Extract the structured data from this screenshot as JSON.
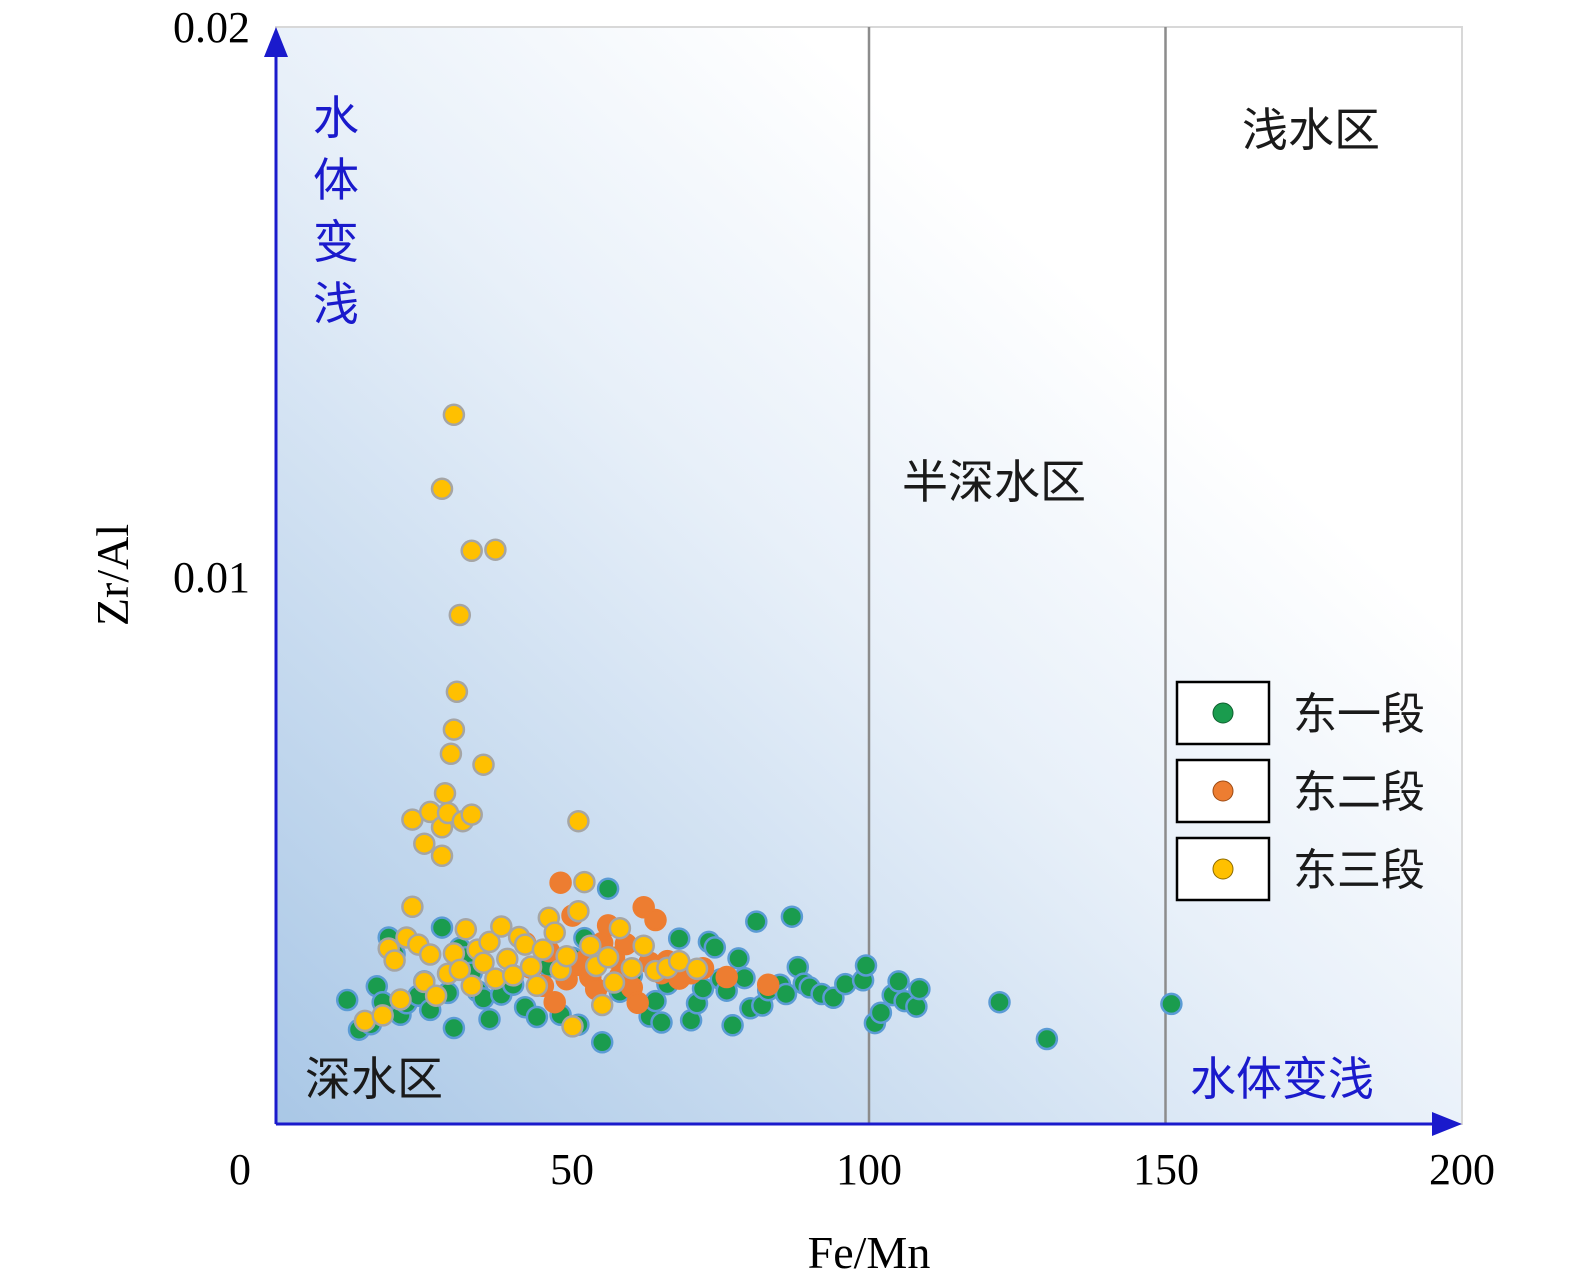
{
  "chart_data": {
    "type": "scatter",
    "xlabel": "Fe/Mn",
    "ylabel": "Zr/Al",
    "xlim": [
      0,
      200
    ],
    "ylim": [
      0,
      0.02
    ],
    "x_ticks": [
      "0",
      "50",
      "100",
      "150",
      "200"
    ],
    "y_ticks": [
      "0.01",
      "0.02"
    ],
    "zone_boundaries_x": [
      100,
      150
    ],
    "zone_labels": {
      "deep": "深水区",
      "semi_deep": "半深水区",
      "shallow": "浅水区"
    },
    "arrow_labels": {
      "x": "水体变浅",
      "y": [
        "水",
        "体",
        "变",
        "浅"
      ]
    },
    "legend_position": "right",
    "colors": {
      "background_gradient_start": "#a9c7e6",
      "background_gradient_end": "#ffffff",
      "axis": "#1a1acc",
      "zone_line": "#8c8c8c"
    },
    "series": [
      {
        "name": "东一段",
        "color": "#1a9c4e",
        "stroke": "#5b9bd5",
        "points": [
          [
            12,
            0.00226
          ],
          [
            14,
            0.00172
          ],
          [
            16,
            0.00182
          ],
          [
            17,
            0.00251
          ],
          [
            18,
            0.00222
          ],
          [
            19,
            0.0034
          ],
          [
            20,
            0.0031
          ],
          [
            21,
            0.00199
          ],
          [
            22,
            0.0022
          ],
          [
            24,
            0.00234
          ],
          [
            25,
            0.0026
          ],
          [
            26,
            0.00208
          ],
          [
            28,
            0.00358
          ],
          [
            29,
            0.00239
          ],
          [
            30,
            0.00175
          ],
          [
            31,
            0.00321
          ],
          [
            32,
            0.00304
          ],
          [
            33,
            0.00276
          ],
          [
            34,
            0.00242
          ],
          [
            35,
            0.00229
          ],
          [
            36,
            0.00191
          ],
          [
            38,
            0.00236
          ],
          [
            40,
            0.00254
          ],
          [
            42,
            0.00213
          ],
          [
            44,
            0.00195
          ],
          [
            46,
            0.00287
          ],
          [
            48,
            0.00199
          ],
          [
            50,
            0.00303
          ],
          [
            51,
            0.00181
          ],
          [
            52,
            0.00339
          ],
          [
            55,
            0.00149
          ],
          [
            56,
            0.00429
          ],
          [
            58,
            0.00241
          ],
          [
            60,
            0.00271
          ],
          [
            63,
            0.00196
          ],
          [
            64,
            0.00224
          ],
          [
            65,
            0.00185
          ],
          [
            66,
            0.00255
          ],
          [
            67,
            0.00289
          ],
          [
            68,
            0.00338
          ],
          [
            69,
            0.00274
          ],
          [
            70,
            0.00189
          ],
          [
            71,
            0.0022
          ],
          [
            72,
            0.00247
          ],
          [
            73,
            0.00332
          ],
          [
            74,
            0.00322
          ],
          [
            75,
            0.00264
          ],
          [
            76,
            0.00243
          ],
          [
            77,
            0.0018
          ],
          [
            78,
            0.00302
          ],
          [
            79,
            0.00266
          ],
          [
            80,
            0.00211
          ],
          [
            81,
            0.00369
          ],
          [
            82,
            0.00216
          ],
          [
            83,
            0.00244
          ],
          [
            85,
            0.00254
          ],
          [
            86,
            0.00237
          ],
          [
            87,
            0.00378
          ],
          [
            88,
            0.00286
          ],
          [
            89,
            0.00256
          ],
          [
            90,
            0.00249
          ],
          [
            92,
            0.00237
          ],
          [
            94,
            0.0023
          ],
          [
            96,
            0.00255
          ],
          [
            99,
            0.00262
          ],
          [
            99.5,
            0.00289
          ],
          [
            101,
            0.00184
          ],
          [
            102,
            0.00203
          ],
          [
            104,
            0.00235
          ],
          [
            105,
            0.0026
          ],
          [
            106,
            0.00224
          ],
          [
            108,
            0.00214
          ],
          [
            108.5,
            0.00246
          ],
          [
            122,
            0.00222
          ],
          [
            130,
            0.00155
          ],
          [
            151,
            0.00219
          ]
        ]
      },
      {
        "name": "东二段",
        "color": "#ed7d31",
        "stroke": "#ed7d31",
        "points": [
          [
            42,
            0.0033
          ],
          [
            43,
            0.00285
          ],
          [
            45,
            0.00252
          ],
          [
            46,
            0.00315
          ],
          [
            47,
            0.00222
          ],
          [
            48,
            0.0044
          ],
          [
            49,
            0.00264
          ],
          [
            50,
            0.0038
          ],
          [
            51,
            0.0029
          ],
          [
            52,
            0.00297
          ],
          [
            53,
            0.00268
          ],
          [
            54,
            0.00246
          ],
          [
            55,
            0.0033
          ],
          [
            56,
            0.00362
          ],
          [
            57,
            0.00303
          ],
          [
            58,
            0.00269
          ],
          [
            59,
            0.00328
          ],
          [
            60,
            0.00249
          ],
          [
            61,
            0.00221
          ],
          [
            62,
            0.00395
          ],
          [
            63,
            0.00294
          ],
          [
            64,
            0.00372
          ],
          [
            65,
            0.00275
          ],
          [
            66,
            0.00297
          ],
          [
            68,
            0.00265
          ],
          [
            70,
            0.00275
          ],
          [
            72,
            0.00284
          ],
          [
            76,
            0.00268
          ],
          [
            83,
            0.00254
          ]
        ]
      },
      {
        "name": "东三段",
        "color": "#ffc000",
        "stroke": "#a5a5a5",
        "points": [
          [
            15,
            0.00188
          ],
          [
            18,
            0.00198
          ],
          [
            19,
            0.0032
          ],
          [
            20,
            0.00298
          ],
          [
            21,
            0.00227
          ],
          [
            22,
            0.0034
          ],
          [
            23,
            0.00396
          ],
          [
            24,
            0.00327
          ],
          [
            25,
            0.00259
          ],
          [
            26,
            0.00309
          ],
          [
            27,
            0.00234
          ],
          [
            28,
            0.00489
          ],
          [
            29,
            0.00274
          ],
          [
            30,
            0.00311
          ],
          [
            31,
            0.00281
          ],
          [
            32,
            0.00355
          ],
          [
            33,
            0.00252
          ],
          [
            34,
            0.00318
          ],
          [
            35,
            0.00294
          ],
          [
            36,
            0.00332
          ],
          [
            37,
            0.00265
          ],
          [
            38,
            0.0036
          ],
          [
            39,
            0.00301
          ],
          [
            40,
            0.00271
          ],
          [
            41,
            0.00341
          ],
          [
            42,
            0.00327
          ],
          [
            43,
            0.00287
          ],
          [
            44,
            0.00252
          ],
          [
            45,
            0.00318
          ],
          [
            46,
            0.00376
          ],
          [
            47,
            0.00349
          ],
          [
            48,
            0.00281
          ],
          [
            49,
            0.00306
          ],
          [
            50,
            0.00178
          ],
          [
            51,
            0.00388
          ],
          [
            52,
            0.00441
          ],
          [
            53,
            0.00325
          ],
          [
            54,
            0.00288
          ],
          [
            55,
            0.00217
          ],
          [
            56,
            0.00304
          ],
          [
            57,
            0.00258
          ],
          [
            58,
            0.00357
          ],
          [
            60,
            0.00284
          ],
          [
            62,
            0.00325
          ],
          [
            64,
            0.00279
          ],
          [
            66,
            0.00285
          ],
          [
            68,
            0.00297
          ],
          [
            71,
            0.00283
          ],
          [
            23,
            0.00555
          ],
          [
            25,
            0.00511
          ],
          [
            26,
            0.00569
          ],
          [
            28,
            0.00541
          ],
          [
            28.5,
            0.00603
          ],
          [
            29,
            0.00567
          ],
          [
            29.5,
            0.00675
          ],
          [
            30,
            0.00719
          ],
          [
            30.5,
            0.00788
          ],
          [
            31,
            0.00928
          ],
          [
            31.5,
            0.00552
          ],
          [
            33,
            0.00564
          ],
          [
            35,
            0.00655
          ],
          [
            28,
            0.01158
          ],
          [
            30,
            0.01293
          ],
          [
            33,
            0.01045
          ],
          [
            37,
            0.01047
          ],
          [
            51,
            0.00552
          ]
        ]
      }
    ]
  }
}
